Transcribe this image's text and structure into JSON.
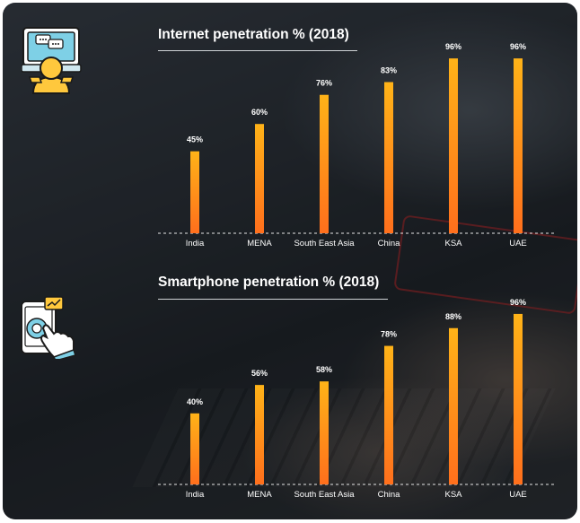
{
  "colors": {
    "bar_top": "#ffb318",
    "bar_bottom": "#ff6f1c",
    "text": "#ffffff",
    "baseline": "#e6e6e6"
  },
  "icons": {
    "internet": "person-at-laptop-chat-icon",
    "smartphone": "hand-tapping-smartphone-icon"
  },
  "chart_data": [
    {
      "type": "bar",
      "title": "Internet penetration % (2018)",
      "categories": [
        "India",
        "MENA",
        "South East Asia",
        "China",
        "KSA",
        "UAE"
      ],
      "values": [
        45,
        60,
        76,
        83,
        96,
        96
      ],
      "value_labels": [
        "45%",
        "60%",
        "76%",
        "83%",
        "96%",
        "96%"
      ],
      "ylim": [
        0,
        100
      ],
      "grid": false
    },
    {
      "type": "bar",
      "title": "Smartphone penetration % (2018)",
      "categories": [
        "India",
        "MENA",
        "South East Asia",
        "China",
        "KSA",
        "UAE"
      ],
      "values": [
        40,
        56,
        58,
        78,
        88,
        96
      ],
      "value_labels": [
        "40%",
        "56%",
        "58%",
        "78%",
        "88%",
        "96%"
      ],
      "ylim": [
        0,
        100
      ],
      "grid": false
    }
  ]
}
